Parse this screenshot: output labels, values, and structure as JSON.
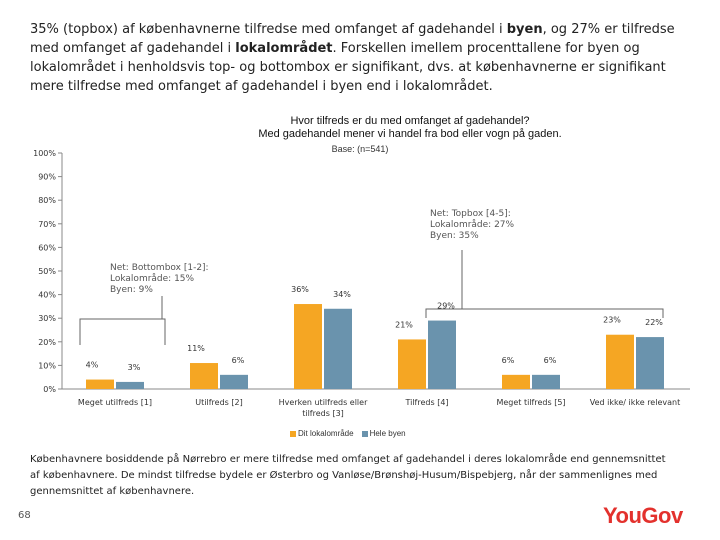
{
  "intro": {
    "part1": "35% (topbox) af københavnerne tilfredse med omfanget af gadehandel i ",
    "bold1": "byen",
    "part2": ", og 27% er tilfredse med omfanget af gadehandel i ",
    "bold2": "lokalområdet",
    "part3": ". Forskellen imellem procenttallene for byen og lokalområdet i henholdsvis top- og bottombox er signifikant, dvs. at københavnerne er signifikant mere tilfredse med omfanget af gadehandel i byen end i lokalområdet."
  },
  "chart_title_line1": "Hvor tilfreds er du med omfanget af gadehandel?",
  "chart_title_line2": "Med gadehandel mener vi handel fra bod eller vogn på gaden.",
  "base_text": "Base: (n=541)",
  "colors": {
    "lokal": "#f5a623",
    "by": "#6a93ad",
    "logo": "#e3312d"
  },
  "chart_data": {
    "type": "bar",
    "categories": [
      "Meget utilfreds [1]",
      "Utilfreds [2]",
      "Hverken utilfreds eller tilfreds [3]",
      "Tilfreds [4]",
      "Meget tilfreds [5]",
      "Ved ikke/ ikke relevant"
    ],
    "series": [
      {
        "name": "Dit lokalområde",
        "values": [
          4,
          11,
          36,
          21,
          6,
          23
        ]
      },
      {
        "name": "Hele byen",
        "values": [
          3,
          6,
          34,
          29,
          6,
          22
        ]
      }
    ],
    "value_labels": [
      [
        "4%",
        "11%",
        "36%",
        "21%",
        "6%",
        "23%"
      ],
      [
        "3%",
        "6%",
        "34%",
        "29%",
        "6%",
        "22%"
      ]
    ],
    "y_ticks": [
      "0%",
      "10%",
      "20%",
      "30%",
      "40%",
      "50%",
      "60%",
      "70%",
      "80%",
      "90%",
      "100%"
    ],
    "ylim": [
      0,
      100
    ],
    "legend_position": "bottom"
  },
  "annotations": {
    "bottom_net": [
      "Net: Bottombox [1-2]:",
      "Lokalområde: 15%",
      "Byen: 9%"
    ],
    "top_net": [
      "Net: Topbox [4-5]:",
      "Lokalområde: 27%",
      "Byen: 35%"
    ]
  },
  "footer_text": "Københavnere bosiddende på Nørrebro er mere tilfredse med omfanget af gadehandel i deres lokalområde end gennemsnittet af københavnere. De mindst tilfredse bydele er Østerbro og Vanløse/Brønshøj-Husum/Bispebjerg, når der sammenlignes med gennemsnittet af københavnere.",
  "page_number": "68",
  "logo_text": "YouGov"
}
